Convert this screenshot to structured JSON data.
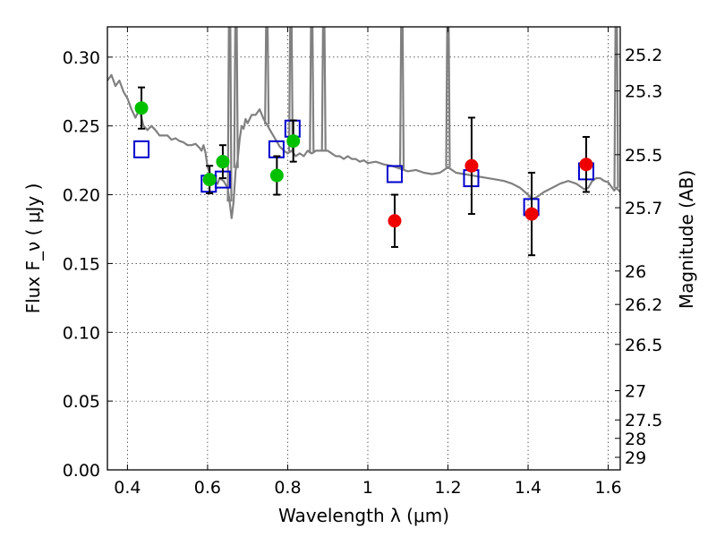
{
  "chart_data": {
    "type": "scatter",
    "xlabel": "Wavelength  λ (μm)",
    "ylabel": "Flux  F_ν  ( μJy )",
    "ylabel_right": "Magnitude (AB)",
    "xlim": [
      0.35,
      1.63
    ],
    "ylim": [
      0.0,
      0.322
    ],
    "grid": true,
    "x_ticks": [
      {
        "value": 0.4,
        "label": "0.4"
      },
      {
        "value": 0.6,
        "label": "0.6"
      },
      {
        "value": 0.8,
        "label": "0.8"
      },
      {
        "value": 1.0,
        "label": "1"
      },
      {
        "value": 1.2,
        "label": "1.2"
      },
      {
        "value": 1.4,
        "label": "1.4"
      },
      {
        "value": 1.6,
        "label": "1.6"
      }
    ],
    "y_ticks": [
      {
        "value": 0.0,
        "label": "0.00"
      },
      {
        "value": 0.05,
        "label": "0.05"
      },
      {
        "value": 0.1,
        "label": "0.10"
      },
      {
        "value": 0.15,
        "label": "0.15"
      },
      {
        "value": 0.2,
        "label": "0.20"
      },
      {
        "value": 0.25,
        "label": "0.25"
      },
      {
        "value": 0.3,
        "label": "0.30"
      }
    ],
    "mag_ticks": [
      {
        "value": 25.2,
        "label": "25.2"
      },
      {
        "value": 25.3,
        "label": "25.3"
      },
      {
        "value": 25.5,
        "label": "25.5"
      },
      {
        "value": 25.7,
        "label": "25.7"
      },
      {
        "value": 26,
        "label": "26"
      },
      {
        "value": 26.2,
        "label": "26.2"
      },
      {
        "value": 26.5,
        "label": "26.5"
      },
      {
        "value": 27,
        "label": "27"
      },
      {
        "value": 27.5,
        "label": "27.5"
      },
      {
        "value": 28,
        "label": "28"
      },
      {
        "value": 29,
        "label": "29"
      }
    ],
    "series": [
      {
        "style": "line",
        "color": "#808080",
        "points": [
          [
            0.35,
            0.283
          ],
          [
            0.36,
            0.287
          ],
          [
            0.37,
            0.279
          ],
          [
            0.38,
            0.283
          ],
          [
            0.39,
            0.275
          ],
          [
            0.4,
            0.27
          ],
          [
            0.41,
            0.262
          ],
          [
            0.42,
            0.256
          ],
          [
            0.43,
            0.262
          ],
          [
            0.44,
            0.25
          ],
          [
            0.45,
            0.247
          ],
          [
            0.46,
            0.25
          ],
          [
            0.47,
            0.247
          ],
          [
            0.48,
            0.243
          ],
          [
            0.49,
            0.243
          ],
          [
            0.5,
            0.243
          ],
          [
            0.51,
            0.24
          ],
          [
            0.52,
            0.241
          ],
          [
            0.53,
            0.239
          ],
          [
            0.54,
            0.238
          ],
          [
            0.55,
            0.236
          ],
          [
            0.56,
            0.236
          ],
          [
            0.57,
            0.237
          ],
          [
            0.58,
            0.234
          ],
          [
            0.585,
            0.232
          ],
          [
            0.59,
            0.236
          ],
          [
            0.595,
            0.23
          ],
          [
            0.6,
            0.22
          ],
          [
            0.61,
            0.213
          ],
          [
            0.62,
            0.209
          ],
          [
            0.625,
            0.208
          ],
          [
            0.63,
            0.212
          ],
          [
            0.64,
            0.21
          ],
          [
            0.65,
            0.205
          ],
          [
            0.655,
            0.195
          ],
          [
            0.66,
            0.183
          ],
          [
            0.665,
            0.195
          ],
          [
            0.67,
            0.218
          ],
          [
            0.675,
            0.225
          ],
          [
            0.68,
            0.24
          ],
          [
            0.685,
            0.25
          ],
          [
            0.69,
            0.248
          ],
          [
            0.695,
            0.255
          ],
          [
            0.7,
            0.252
          ],
          [
            0.71,
            0.258
          ],
          [
            0.72,
            0.258
          ],
          [
            0.73,
            0.262
          ],
          [
            0.74,
            0.255
          ],
          [
            0.75,
            0.25
          ],
          [
            0.76,
            0.245
          ],
          [
            0.77,
            0.24
          ],
          [
            0.78,
            0.235
          ],
          [
            0.79,
            0.232
          ],
          [
            0.8,
            0.23
          ],
          [
            0.81,
            0.232
          ],
          [
            0.82,
            0.228
          ],
          [
            0.83,
            0.23
          ],
          [
            0.84,
            0.228
          ],
          [
            0.85,
            0.232
          ],
          [
            0.86,
            0.23
          ],
          [
            0.87,
            0.232
          ],
          [
            0.88,
            0.232
          ],
          [
            0.89,
            0.232
          ],
          [
            0.9,
            0.232
          ],
          [
            0.91,
            0.23
          ],
          [
            0.92,
            0.228
          ],
          [
            0.93,
            0.228
          ],
          [
            0.94,
            0.226
          ],
          [
            0.95,
            0.228
          ],
          [
            0.96,
            0.226
          ],
          [
            0.97,
            0.226
          ],
          [
            0.98,
            0.224
          ],
          [
            0.99,
            0.225
          ],
          [
            1.0,
            0.223
          ],
          [
            1.02,
            0.224
          ],
          [
            1.04,
            0.222
          ],
          [
            1.06,
            0.221
          ],
          [
            1.08,
            0.219
          ],
          [
            1.1,
            0.217
          ],
          [
            1.12,
            0.218
          ],
          [
            1.14,
            0.216
          ],
          [
            1.16,
            0.215
          ],
          [
            1.18,
            0.216
          ],
          [
            1.2,
            0.22
          ],
          [
            1.22,
            0.216
          ],
          [
            1.24,
            0.215
          ],
          [
            1.26,
            0.214
          ],
          [
            1.28,
            0.213
          ],
          [
            1.3,
            0.212
          ],
          [
            1.32,
            0.211
          ],
          [
            1.34,
            0.21
          ],
          [
            1.36,
            0.208
          ],
          [
            1.38,
            0.205
          ],
          [
            1.4,
            0.2
          ],
          [
            1.41,
            0.197
          ],
          [
            1.42,
            0.198
          ],
          [
            1.43,
            0.2
          ],
          [
            1.44,
            0.202
          ],
          [
            1.46,
            0.205
          ],
          [
            1.48,
            0.208
          ],
          [
            1.5,
            0.21
          ],
          [
            1.52,
            0.208
          ],
          [
            1.54,
            0.204
          ],
          [
            1.55,
            0.205
          ],
          [
            1.56,
            0.21
          ],
          [
            1.57,
            0.212
          ],
          [
            1.58,
            0.212
          ],
          [
            1.59,
            0.21
          ],
          [
            1.6,
            0.209
          ],
          [
            1.61,
            0.205
          ],
          [
            1.615,
            0.203
          ],
          [
            1.62,
            0.205
          ],
          [
            1.63,
            0.202
          ]
        ],
        "emission_spikes": [
          0.655,
          0.671,
          0.748,
          0.808,
          0.86,
          0.89,
          1.085,
          1.2,
          1.62
        ]
      },
      {
        "style": "open-square",
        "color": "#0000cc",
        "x": [
          0.435,
          0.603,
          0.638,
          0.772,
          0.812,
          1.067,
          1.258,
          1.408,
          1.545
        ],
        "y": [
          0.233,
          0.208,
          0.211,
          0.233,
          0.248,
          0.215,
          0.212,
          0.191,
          0.217
        ]
      },
      {
        "style": "filled-circle",
        "color": "#00c000",
        "x": [
          0.435,
          0.605,
          0.638,
          0.773,
          0.814
        ],
        "y": [
          0.263,
          0.211,
          0.224,
          0.214,
          0.239
        ],
        "err": [
          0.015,
          0.01,
          0.012,
          0.014,
          0.015
        ]
      },
      {
        "style": "filled-circle",
        "color": "#ee0000",
        "x": [
          1.067,
          1.259,
          1.409,
          1.545
        ],
        "y": [
          0.181,
          0.221,
          0.186,
          0.222
        ],
        "err": [
          0.019,
          0.035,
          0.03,
          0.02
        ]
      }
    ]
  }
}
